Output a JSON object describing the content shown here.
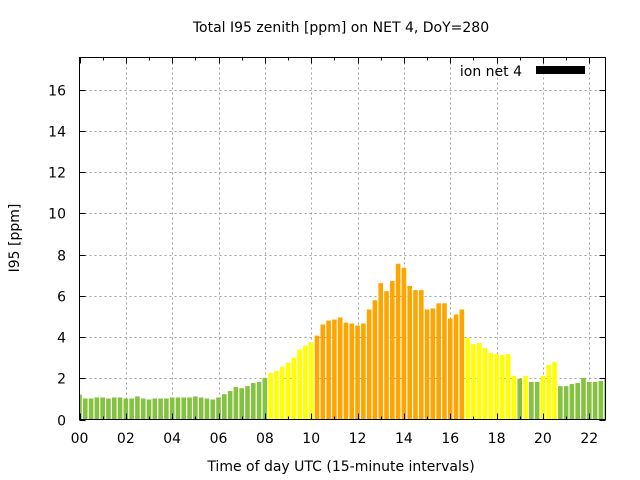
{
  "chart_data": {
    "type": "bar",
    "title": "Total I95 zenith [ppm] on NET 4, DoY=280",
    "xlabel": "Time of day UTC (15-minute intervals)",
    "ylabel": "I95 [ppm]",
    "xlim": [
      0,
      22.7
    ],
    "ylim": [
      0,
      17.57
    ],
    "x_ticks": [
      0,
      2,
      4,
      6,
      8,
      10,
      12,
      14,
      16,
      18,
      20,
      22
    ],
    "x_tick_labels": [
      "00",
      "02",
      "04",
      "06",
      "08",
      "10",
      "12",
      "14",
      "16",
      "18",
      "20",
      "22"
    ],
    "y_ticks": [
      0,
      2,
      4,
      6,
      8,
      10,
      12,
      14,
      16
    ],
    "y_tick_labels": [
      "0",
      "2",
      "4",
      "6",
      "8",
      "10",
      "12",
      "14",
      "16"
    ],
    "grid": true,
    "interval_hours": 0.25,
    "legend": {
      "position": "top-right",
      "entries": [
        {
          "label": "ion net 4",
          "color": "#000000"
        }
      ]
    },
    "level_colors": {
      "low": "#86c242",
      "medium": "#ffff00",
      "high": "#ffa500"
    },
    "values": [
      1.21,
      1.02,
      1.02,
      1.07,
      1.07,
      1.02,
      1.07,
      1.07,
      1.02,
      1.02,
      1.12,
      1.02,
      0.97,
      1.02,
      1.02,
      1.02,
      1.07,
      1.07,
      1.07,
      1.07,
      1.12,
      1.07,
      1.02,
      0.97,
      1.07,
      1.23,
      1.38,
      1.57,
      1.52,
      1.62,
      1.77,
      1.82,
      2.02,
      2.26,
      2.36,
      2.56,
      2.75,
      3.0,
      3.39,
      3.59,
      3.74,
      4.07,
      4.61,
      4.8,
      4.85,
      4.95,
      4.7,
      4.66,
      4.56,
      4.66,
      5.34,
      5.79,
      6.62,
      6.23,
      6.72,
      7.56,
      7.36,
      6.48,
      6.28,
      6.28,
      5.34,
      5.39,
      5.64,
      5.64,
      4.9,
      5.1,
      5.34,
      3.95,
      3.66,
      3.71,
      3.47,
      3.23,
      3.18,
      3.13,
      3.18,
      2.11,
      1.97,
      2.11,
      1.82,
      1.82,
      2.11,
      2.65,
      2.79,
      1.62,
      1.62,
      1.72,
      1.77,
      2.02,
      1.82,
      1.82,
      1.87,
      1.97
    ],
    "levels": [
      "low",
      "low",
      "low",
      "low",
      "low",
      "low",
      "low",
      "low",
      "low",
      "low",
      "low",
      "low",
      "low",
      "low",
      "low",
      "low",
      "low",
      "low",
      "low",
      "low",
      "low",
      "low",
      "low",
      "low",
      "low",
      "low",
      "low",
      "low",
      "low",
      "low",
      "low",
      "low",
      "low",
      "medium",
      "medium",
      "medium",
      "medium",
      "medium",
      "medium",
      "medium",
      "medium",
      "high",
      "high",
      "high",
      "high",
      "high",
      "high",
      "high",
      "high",
      "high",
      "high",
      "high",
      "high",
      "high",
      "high",
      "high",
      "high",
      "high",
      "high",
      "high",
      "high",
      "high",
      "high",
      "high",
      "high",
      "high",
      "high",
      "medium",
      "medium",
      "medium",
      "medium",
      "medium",
      "medium",
      "medium",
      "medium",
      "medium",
      "low",
      "medium",
      "low",
      "low",
      "medium",
      "medium",
      "medium",
      "low",
      "low",
      "low",
      "low",
      "low",
      "low",
      "low",
      "low",
      "low"
    ]
  }
}
